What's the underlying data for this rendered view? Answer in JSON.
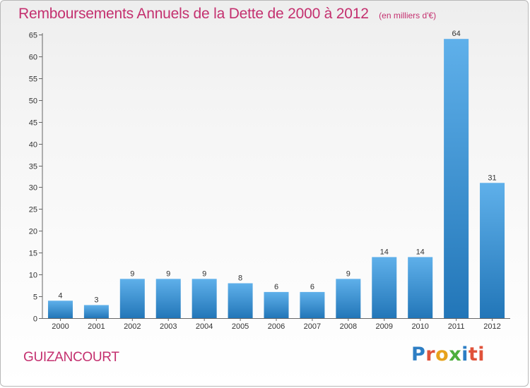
{
  "header": {
    "title": "Remboursements Annuels de la Dette de 2000 à 2012",
    "subtitle": "(en milliers d'€)"
  },
  "footer": {
    "commune": "GUIZANCOURT",
    "logo_text": "Proxiti"
  },
  "colors": {
    "accent": "#c4306f",
    "bar_top": "#5fb0ea",
    "bar_bottom": "#2276b8"
  },
  "chart_data": {
    "type": "bar",
    "title": "Remboursements Annuels de la Dette de 2000 à 2012",
    "subtitle": "(en milliers d'€)",
    "categories": [
      "2000",
      "2001",
      "2002",
      "2003",
      "2004",
      "2005",
      "2006",
      "2007",
      "2008",
      "2009",
      "2010",
      "2011",
      "2012"
    ],
    "values": [
      4,
      3,
      9,
      9,
      9,
      8,
      6,
      6,
      9,
      14,
      14,
      64,
      31
    ],
    "ylim": [
      0,
      65
    ],
    "yticks": [
      0,
      5,
      10,
      15,
      20,
      25,
      30,
      35,
      40,
      45,
      50,
      55,
      60,
      65
    ],
    "grid": false,
    "legend": "none"
  }
}
